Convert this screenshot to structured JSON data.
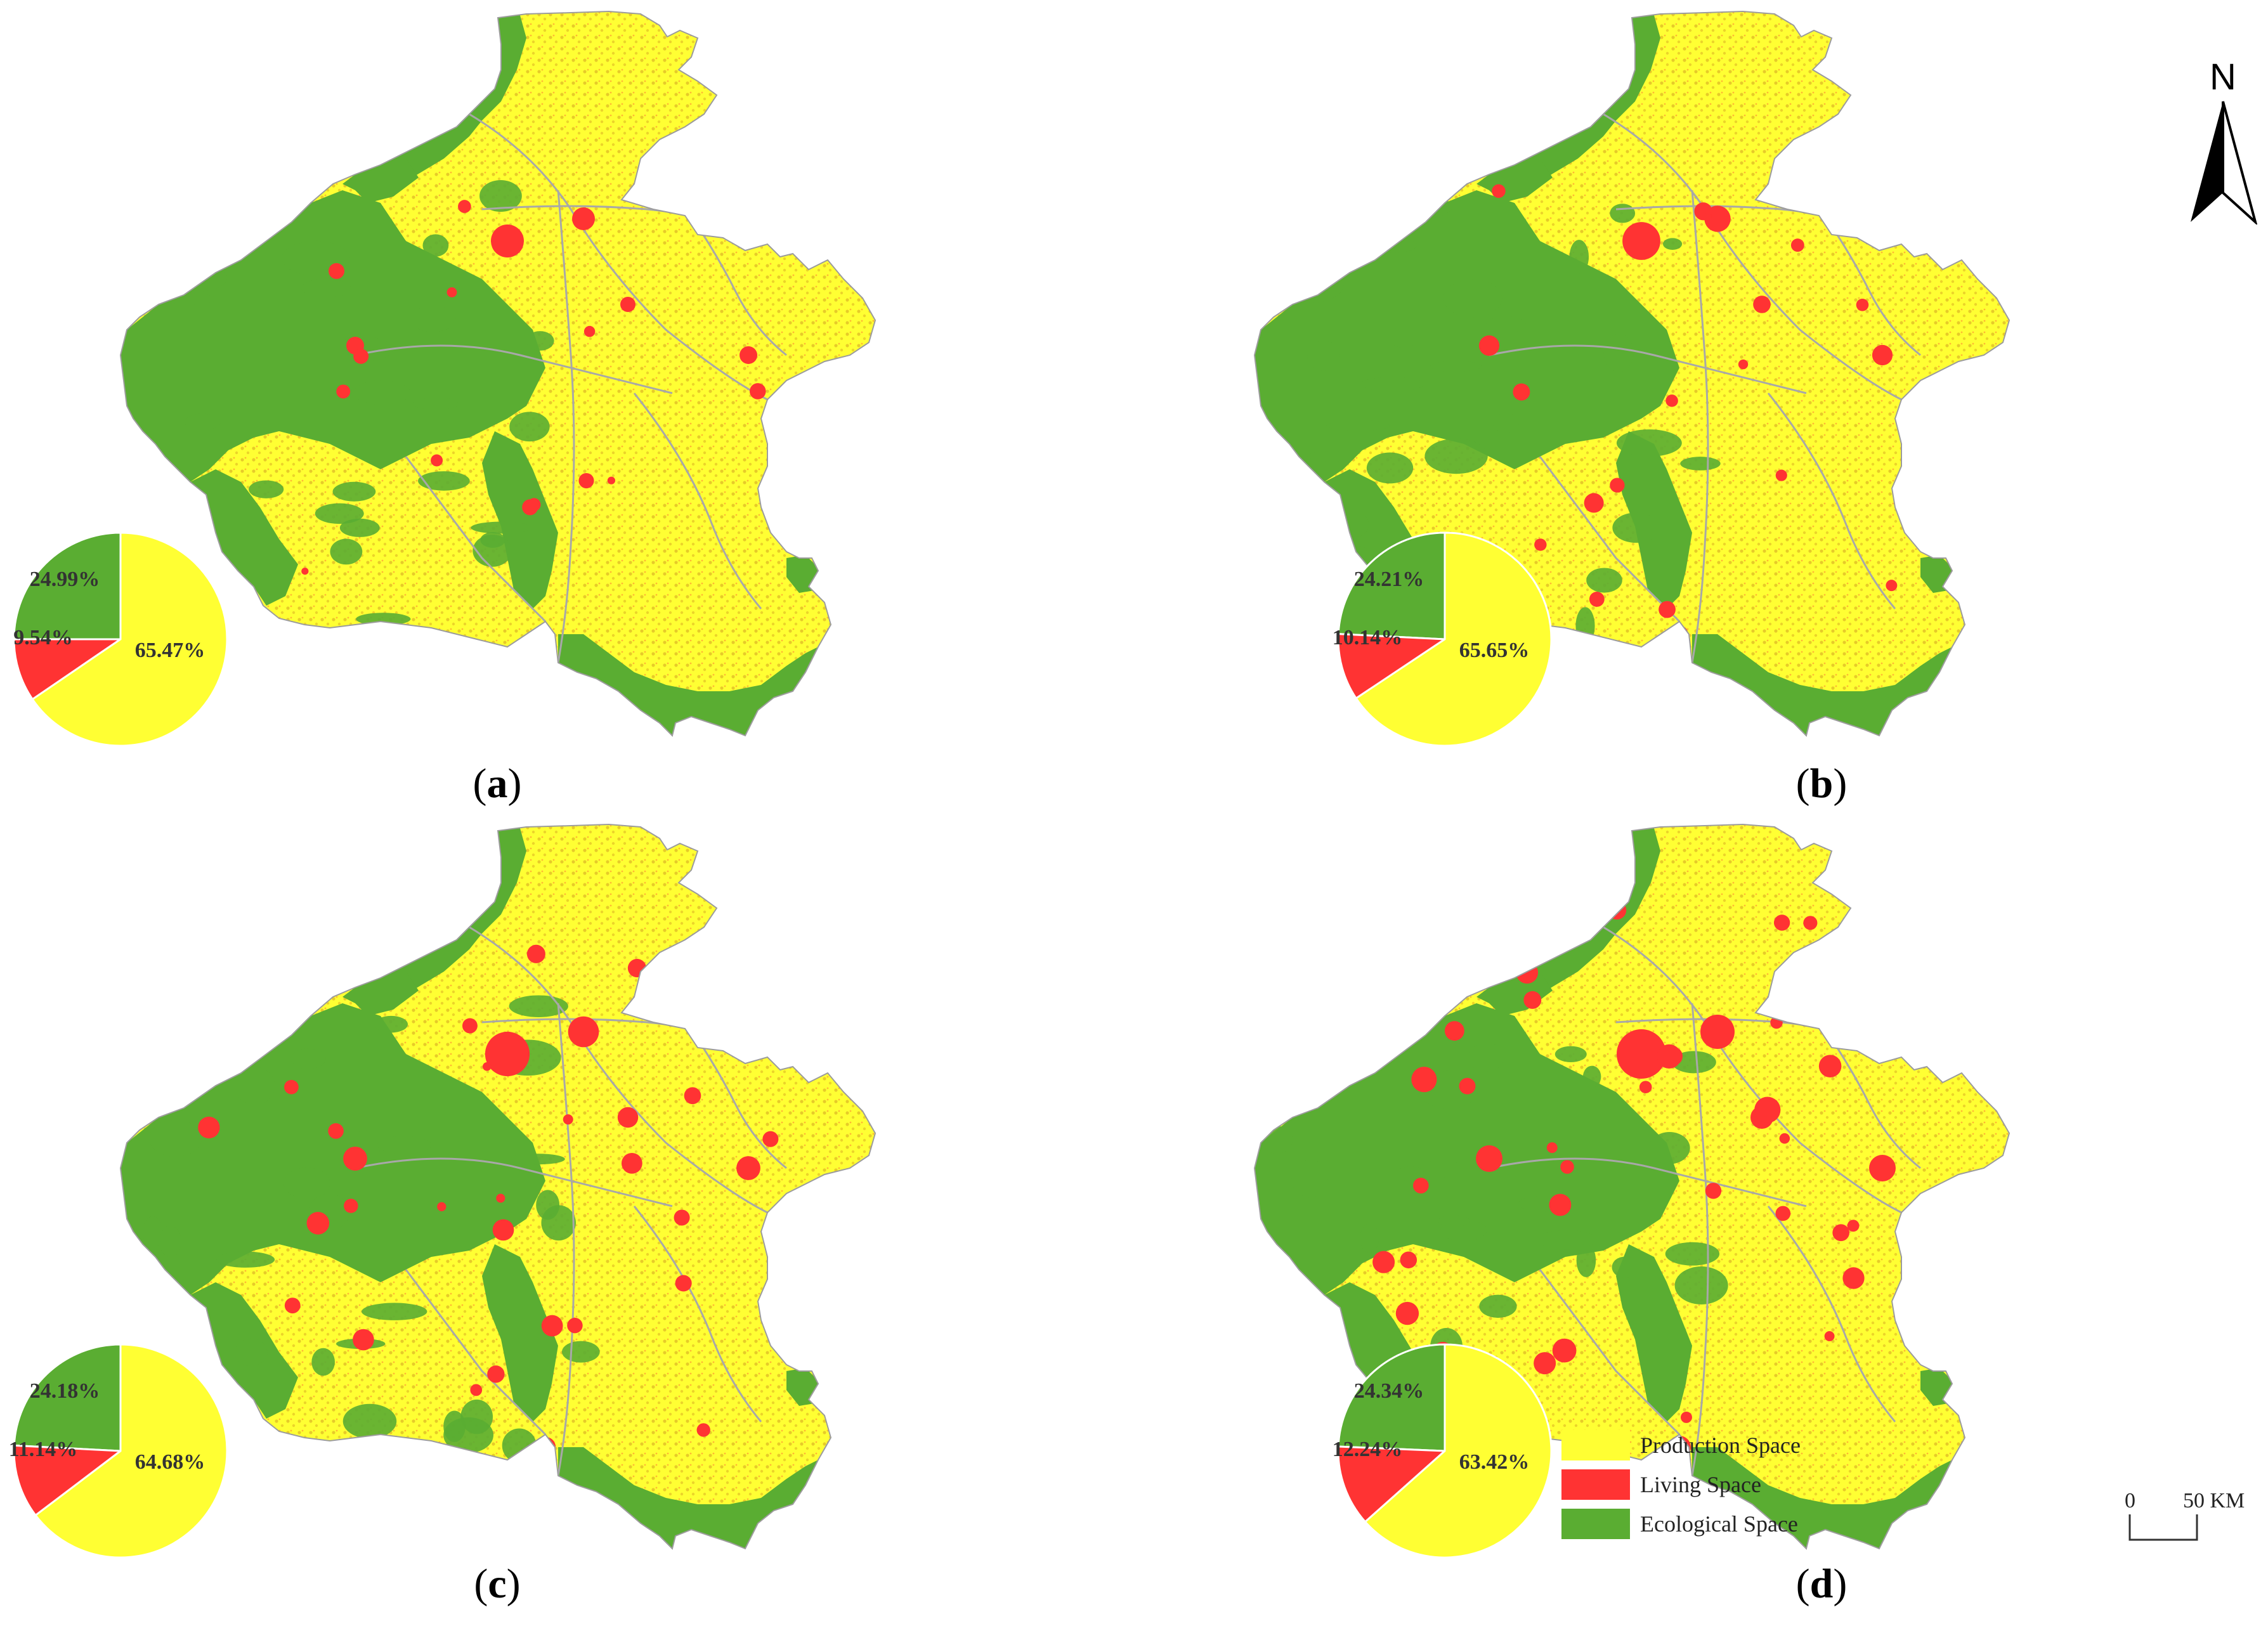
{
  "colors": {
    "production": "#ffff33",
    "living": "#ff3333",
    "ecological": "#5aad32",
    "boundary": "#a8a8a8",
    "production_texture": "#d2a020"
  },
  "panels": [
    {
      "caption": "a",
      "percents": {
        "ecological": "24.99%",
        "living": "9.54%",
        "production": "65.47%"
      },
      "shares": [
        24.99,
        9.54,
        65.47
      ]
    },
    {
      "caption": "b",
      "percents": {
        "ecological": "24.21%",
        "living": "10.14%",
        "production": "65.65%"
      },
      "shares": [
        24.21,
        10.14,
        65.65
      ]
    },
    {
      "caption": "c",
      "percents": {
        "ecological": "24.18%",
        "living": "11.14%",
        "production": "64.68%"
      },
      "shares": [
        24.18,
        11.14,
        64.68
      ]
    },
    {
      "caption": "d",
      "percents": {
        "ecological": "24.34%",
        "living": "12.24%",
        "production": "63.42%"
      },
      "shares": [
        24.34,
        12.24,
        63.42
      ]
    }
  ],
  "legend": {
    "items": [
      {
        "label": "Production Space",
        "color": "#ffff33"
      },
      {
        "label": "Living Space",
        "color": "#ff3333"
      },
      {
        "label": "Ecological Space",
        "color": "#5aad32"
      }
    ]
  },
  "north_arrow": {
    "letter": "N"
  },
  "scale_bar": {
    "zero": "0",
    "end": "50 KM"
  }
}
